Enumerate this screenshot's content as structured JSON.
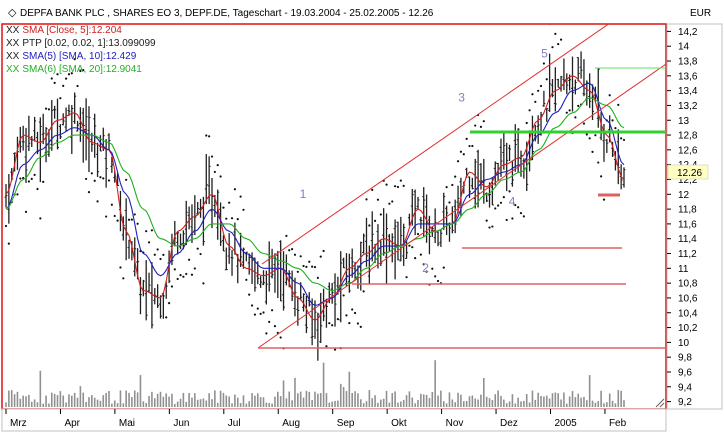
{
  "title_bar": "DEPFA BANK PLC , SHARES EO 3, DEPF.DE, Tageschart - 19.03.2004 - 25.02.2005 - 12.26",
  "currency": "EUR",
  "legend": [
    {
      "prefix": "XX",
      "text": "SMA [Close, 5]:12.204",
      "color": "#d02020"
    },
    {
      "prefix": "XX",
      "text": "PTP [0.02, 0.02, 1]:13.099099",
      "color": "#202020"
    },
    {
      "prefix": "XX",
      "text": "SMA(5) [SMA, 10]:12.429",
      "color": "#2020c0"
    },
    {
      "prefix": "XX",
      "text": "SMA(6) [SMA, 20]:12.9041",
      "color": "#20b020"
    }
  ],
  "colors": {
    "frame": "#e01010",
    "price": "#202020",
    "channel": "#e03030",
    "wave_label": "#8080c0",
    "price_tag_bg": "#ffffc0"
  },
  "current_price": "12.26",
  "wave_labels": [
    {
      "text": "1",
      "x": "2004-08-29",
      "y": 11.95
    },
    {
      "text": "2",
      "x": "2004-11-05",
      "y": 10.95
    },
    {
      "text": "3",
      "x": "2004-11-25",
      "y": 13.25
    },
    {
      "text": "4",
      "x": "2004-12-23",
      "y": 11.85
    },
    {
      "text": "5",
      "x": "2005-01-10",
      "y": 13.85
    }
  ],
  "chart_data": {
    "type": "line",
    "x_ticks": [
      "Mrz",
      "Apr",
      "Mai",
      "Jun",
      "Jul",
      "Aug",
      "Sep",
      "Okt",
      "Nov",
      "Dez",
      "2005",
      "Feb"
    ],
    "y_ticks": [
      "14,2",
      "14",
      "13,8",
      "13,6",
      "13,4",
      "13,2",
      "13",
      "12,8",
      "12,6",
      "12,4",
      "12,2",
      "12",
      "11,8",
      "11,6",
      "11,4",
      "11,2",
      "11",
      "10,8",
      "10,6",
      "10,4",
      "10,2",
      "10",
      "9,8",
      "9,6",
      "9,4",
      "9,2"
    ],
    "ylim": [
      9.1,
      14.3
    ],
    "series": [
      {
        "name": "SMA [Close, 5]",
        "color": "#d02020",
        "values": [
          12.0,
          12.8,
          12.7,
          13.0,
          13.1,
          12.7,
          12.6,
          11.5,
          10.7,
          10.6,
          11.5,
          11.7,
          12.0,
          11.3,
          11.0,
          10.9,
          11.0,
          10.6,
          10.3,
          10.6,
          11.0,
          11.2,
          11.4,
          11.3,
          11.8,
          11.5,
          11.6,
          12.3,
          12.1,
          12.4,
          12.5,
          13.0,
          13.4,
          13.6,
          13.4,
          12.8,
          12.2
        ]
      },
      {
        "name": "SMA(5) [SMA, 10]",
        "color": "#2020c0",
        "values": [
          11.8,
          12.4,
          12.6,
          12.8,
          12.9,
          12.8,
          12.6,
          12.0,
          11.2,
          10.9,
          11.2,
          11.5,
          11.8,
          11.5,
          11.2,
          11.0,
          11.0,
          10.8,
          10.5,
          10.6,
          10.9,
          11.1,
          11.3,
          11.3,
          11.6,
          11.6,
          11.6,
          12.0,
          12.2,
          12.3,
          12.4,
          12.8,
          13.1,
          13.4,
          13.5,
          13.0,
          12.4
        ]
      },
      {
        "name": "SMA(6) [SMA, 20]",
        "color": "#20b020",
        "values": [
          11.8,
          12.2,
          12.5,
          12.7,
          12.8,
          12.8,
          12.7,
          12.3,
          11.8,
          11.4,
          11.3,
          11.4,
          11.6,
          11.6,
          11.4,
          11.2,
          11.1,
          11.0,
          10.8,
          10.7,
          10.8,
          11.0,
          11.2,
          11.3,
          11.4,
          11.5,
          11.6,
          11.8,
          12.0,
          12.2,
          12.3,
          12.6,
          12.9,
          13.1,
          13.3,
          13.2,
          12.9
        ]
      }
    ],
    "grid": false,
    "legend_placement": "top-left"
  }
}
